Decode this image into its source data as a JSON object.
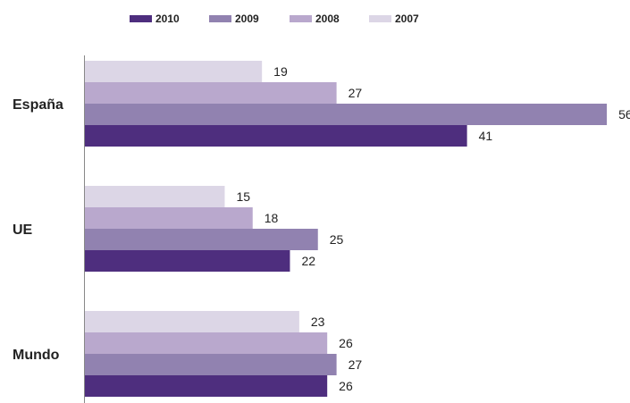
{
  "chart_data": {
    "type": "bar",
    "orientation": "horizontal",
    "title": "",
    "xlabel": "",
    "ylabel": "",
    "categories": [
      "España",
      "UE",
      "Mundo"
    ],
    "series": [
      {
        "name": "2007",
        "color": "#dcd6e6",
        "values": [
          19,
          15,
          23
        ]
      },
      {
        "name": "2008",
        "color": "#b9a8cd",
        "values": [
          27,
          18,
          26
        ]
      },
      {
        "name": "2009",
        "color": "#9182b0",
        "values": [
          56,
          25,
          27
        ]
      },
      {
        "name": "2010",
        "color": "#4e2e7e",
        "values": [
          41,
          22,
          26
        ]
      }
    ],
    "legend_order": [
      "2010",
      "2009",
      "2008",
      "2007"
    ],
    "legend_position": "top",
    "xlim": [
      0,
      56
    ],
    "grid": false,
    "axis_color": "#888888"
  }
}
